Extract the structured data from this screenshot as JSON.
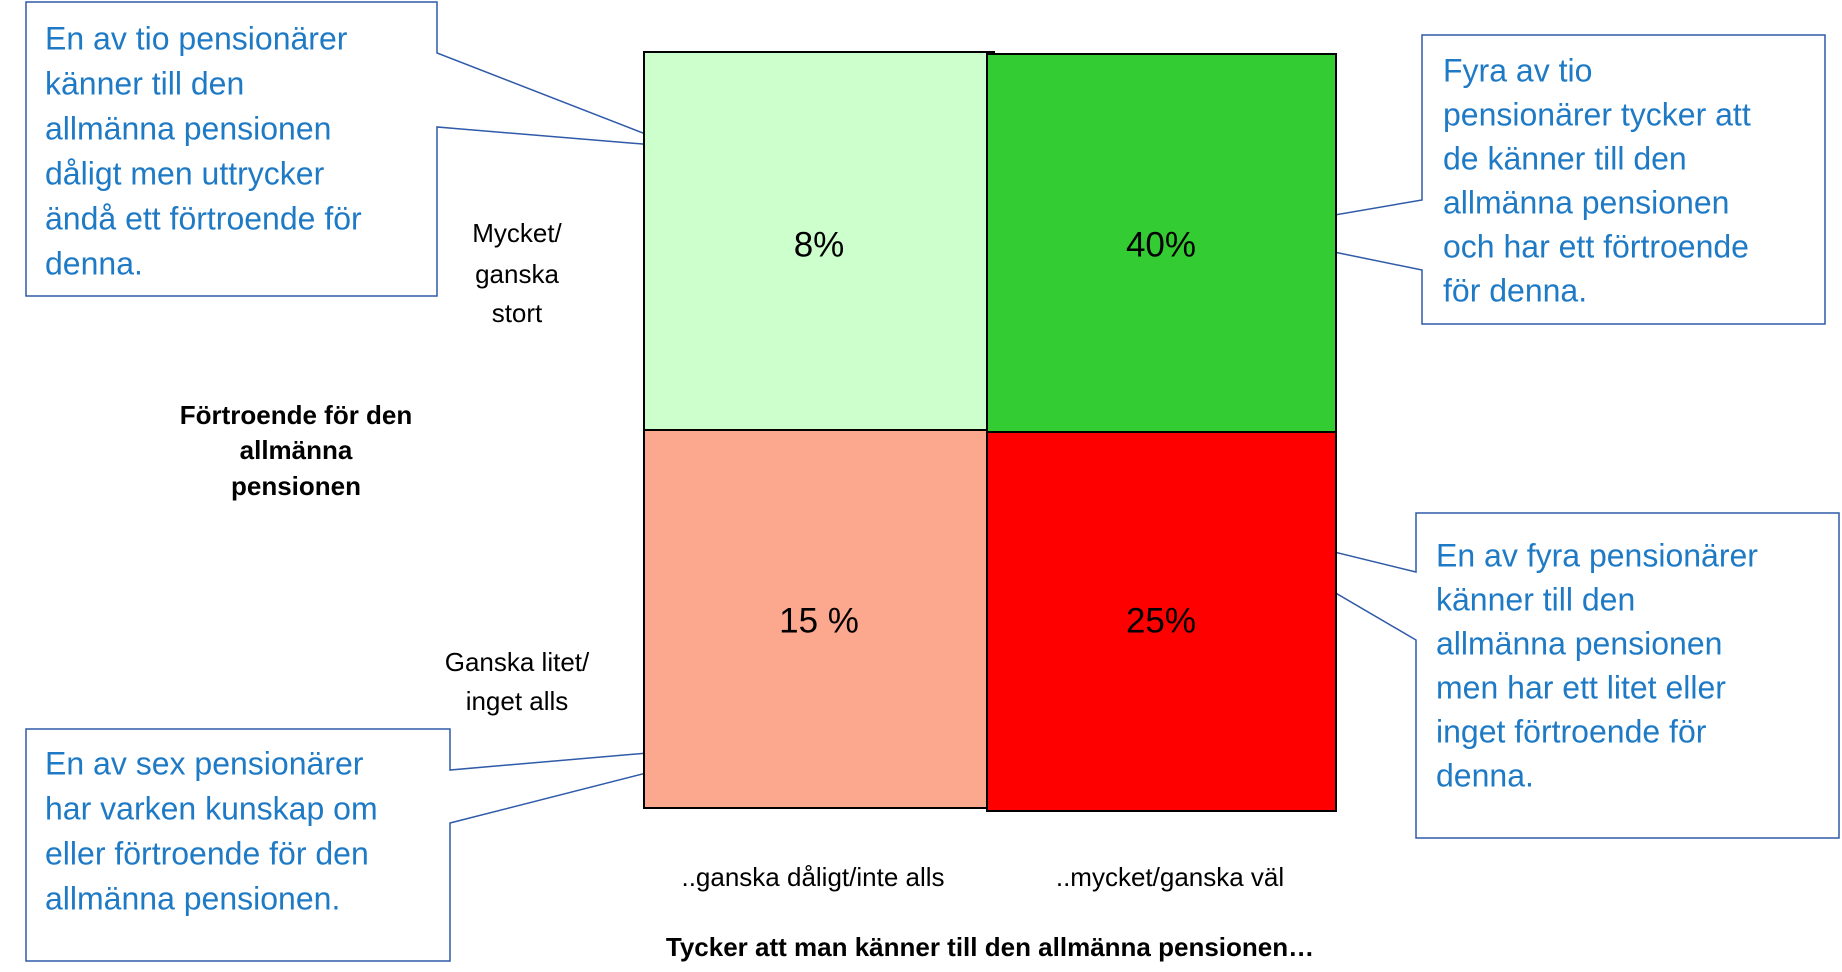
{
  "cells": [
    {
      "label": "8%",
      "color": "#ccffcc"
    },
    {
      "label": "40%",
      "color": "#33cc33"
    },
    {
      "label": "15 %",
      "color": "#fba88f"
    },
    {
      "label": "25%",
      "color": "#ff0000"
    }
  ],
  "row_labels": [
    [
      "Mycket/",
      "ganska",
      "stort"
    ],
    [
      "Ganska litet/",
      "inget alls"
    ]
  ],
  "column_labels": [
    "..ganska dåligt/inte alls",
    "..mycket/ganska väl"
  ],
  "y_title": [
    "Förtroende för den",
    "allmänna",
    "pensionen"
  ],
  "x_title": "Tycker att man känner till den allmänna pensionen…",
  "callouts": [
    [
      "En av tio pensionärer",
      "känner till den",
      "allmänna pensionen",
      "dåligt men uttrycker",
      "ändå ett förtroende för",
      "denna."
    ],
    [
      "Fyra av tio",
      "pensionärer tycker att",
      "de känner till den",
      "allmänna pensionen",
      "och har ett förtroende",
      "för denna."
    ],
    [
      "En av fyra pensionärer",
      "känner till den",
      "allmänna pensionen",
      "men har ett litet eller",
      "inget förtroende för",
      "denna."
    ],
    [
      "En av sex pensionärer",
      "har varken kunskap om",
      "eller förtroende för den",
      "allmänna pensionen."
    ]
  ]
}
